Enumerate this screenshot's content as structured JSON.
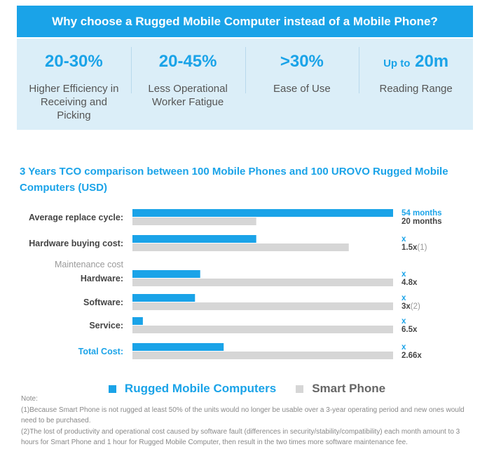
{
  "banner": {
    "title": "Why choose a Rugged Mobile Computer instead of a Mobile Phone?"
  },
  "stats": [
    {
      "prefix": "",
      "value": "20-30%",
      "desc": "Higher Efficiency in Receiving and Picking"
    },
    {
      "prefix": "",
      "value": "20-45%",
      "desc": "Less Operational Worker Fatigue"
    },
    {
      "prefix": "",
      "value": ">30%",
      "desc": "Ease of Use"
    },
    {
      "prefix": "Up to",
      "value": "20m",
      "desc": "Reading Range"
    }
  ],
  "section_title": "3 Years TCO comparison between 100 Mobile Phones and 100 UROVO Rugged Mobile Computers (USD)",
  "chart_data": {
    "type": "bar",
    "orientation": "horizontal",
    "title": "3 Years TCO comparison between 100 Mobile Phones and 100 UROVO Rugged Mobile Computers (USD)",
    "group_label": "Maintenance cost",
    "categories": [
      "Average replace cycle:",
      "Hardware buying cost:",
      "Hardware:",
      "Software:",
      "Service:",
      "Total Cost:"
    ],
    "series": [
      {
        "name": "Rugged Mobile Computers",
        "color": "#1aa3e8",
        "values": [
          54,
          1,
          1,
          1,
          1,
          1
        ],
        "labels": [
          "54 months",
          "x",
          "x",
          "x",
          "x",
          "x"
        ]
      },
      {
        "name": "Smart Phone",
        "color": "#d6d6d6",
        "values": [
          20,
          1.5,
          4.8,
          3,
          6.5,
          2.66
        ],
        "labels": [
          "20 months",
          "1.5x",
          "4.8x",
          "3x",
          "6.5x",
          "2.66x"
        ],
        "footnotes": [
          "",
          "(1)",
          "",
          "(2)",
          "",
          ""
        ]
      }
    ],
    "rugged_relative_length": [
      1,
      0.475,
      0.26,
      0.24,
      0.04,
      0.35
    ],
    "phone_relative_length": [
      0.475,
      0.83,
      1,
      1,
      1,
      1
    ],
    "highlight_category": "Total Cost:",
    "legend_position": "bottom"
  },
  "legend": {
    "rugged": "Rugged Mobile Computers",
    "phone": "Smart Phone"
  },
  "note": {
    "heading": "Note:",
    "lines": [
      "(1)Because Smart Phone is not rugged at least 50% of the units would no longer be usable over a 3-year operating period and new ones would need to be purchased.",
      "(2)The lost of productivity and operational cost caused by software fault (differences in security/stability/compatibility) each month amount to 3 hours for Smart Phone and 1 hour for Rugged Mobile Computer, then result in the two times more software maintenance fee."
    ]
  }
}
